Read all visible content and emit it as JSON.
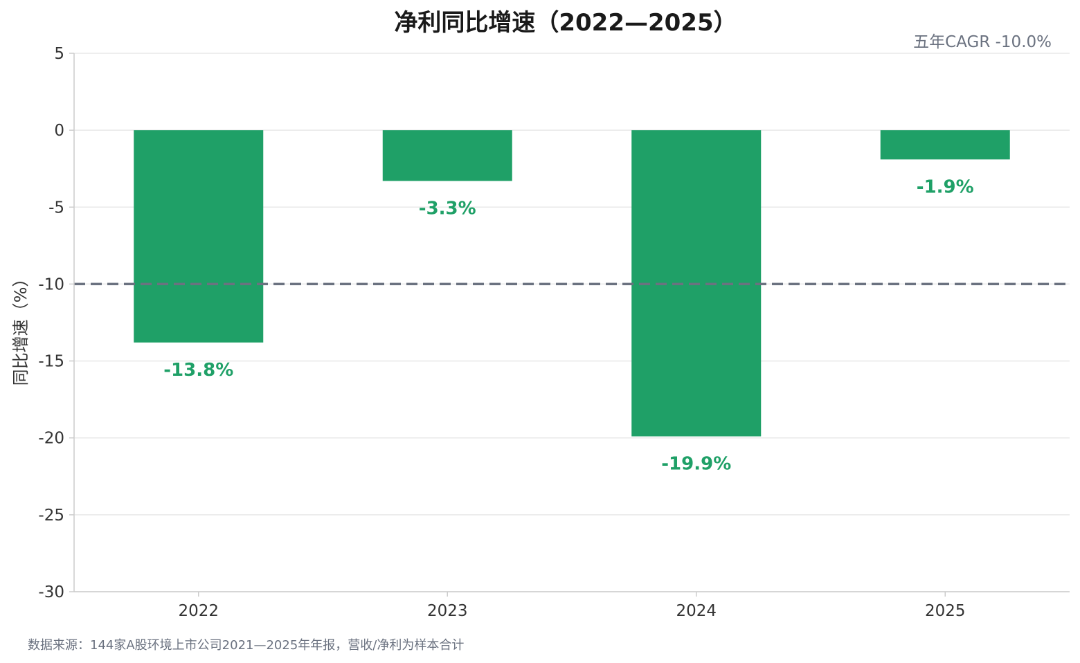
{
  "chart_data": {
    "type": "bar",
    "title": "净利同比增速（2022—2025）",
    "ylabel": "同比增速（%）",
    "xlabel": "",
    "categories": [
      "2022",
      "2023",
      "2024",
      "2025"
    ],
    "values": [
      -13.8,
      -3.3,
      -19.9,
      -1.9
    ],
    "value_labels": [
      "-13.8%",
      "-3.3%",
      "-19.9%",
      "-1.9%"
    ],
    "ylim": [
      -30,
      5
    ],
    "yticks": [
      5,
      0,
      -5,
      -10,
      -15,
      -20,
      -25,
      -30
    ],
    "ytick_labels": [
      "5",
      "0",
      "-5",
      "-10",
      "-15",
      "-20",
      "-25",
      "-30"
    ],
    "reference_line": {
      "value": -10.0
    },
    "annotation": "五年CAGR -10.0%",
    "grid": true,
    "source": "数据来源：144家A股环境上市公司2021—2025年年报，营收/净利为样本合计",
    "colors": {
      "bar": "#1fa067",
      "label": "#1fa067",
      "reference": "#6b7280",
      "grid": "#e8e8e8",
      "axis": "#cccccc"
    }
  }
}
